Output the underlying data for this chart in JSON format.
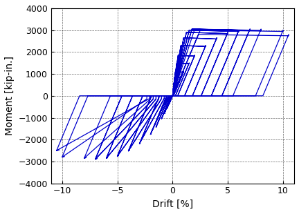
{
  "xlabel": "Drift [%]",
  "ylabel": "Moment [kip-in.]",
  "xlim": [
    -11,
    11
  ],
  "ylim": [
    -4000,
    4000
  ],
  "xticks": [
    -10,
    -5,
    0,
    5,
    10
  ],
  "yticks": [
    -4000,
    -3000,
    -2000,
    -1000,
    0,
    1000,
    2000,
    3000,
    4000
  ],
  "line_color": "#0000cc",
  "line_width": 0.9,
  "background_color": "#ffffff",
  "grid_color": "#000000",
  "grid_linestyle": "--",
  "grid_linewidth": 0.5,
  "cycle_defs": [
    [
      0.3,
      0.3,
      380,
      360,
      2
    ],
    [
      0.5,
      0.5,
      600,
      570,
      2
    ],
    [
      0.75,
      0.75,
      850,
      810,
      2
    ],
    [
      1.0,
      1.0,
      1100,
      1045,
      2
    ],
    [
      1.5,
      1.5,
      1500,
      1425,
      2
    ],
    [
      2.0,
      2.0,
      1850,
      1757,
      2
    ],
    [
      3.0,
      3.0,
      2300,
      2185,
      2
    ],
    [
      4.0,
      4.0,
      2650,
      2517,
      2
    ],
    [
      5.0,
      5.0,
      2900,
      2755,
      2
    ],
    [
      6.0,
      6.0,
      3000,
      2850,
      2
    ],
    [
      7.0,
      7.0,
      3050,
      2897,
      2
    ],
    [
      8.0,
      8.0,
      3050,
      2850,
      1
    ],
    [
      10.0,
      10.0,
      3000,
      2800,
      1
    ],
    [
      10.5,
      10.5,
      2800,
      2500,
      1
    ]
  ]
}
